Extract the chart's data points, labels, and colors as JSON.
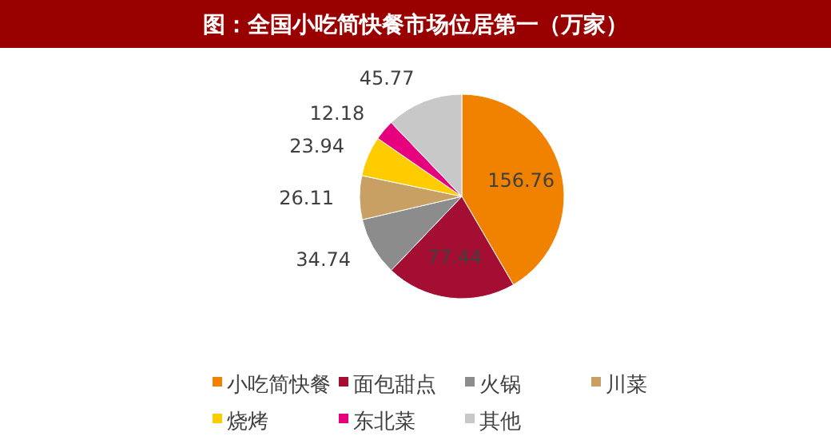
{
  "chart_data": {
    "type": "pie",
    "title": "图：全国小吃简快餐市场位居第一（万家）",
    "categories": [
      "小吃简快餐",
      "面包甜点",
      "火锅",
      "川菜",
      "烧烤",
      "东北菜",
      "其他"
    ],
    "values": [
      156.76,
      77.44,
      34.74,
      26.11,
      23.94,
      12.18,
      45.77
    ],
    "colors": [
      "#f08200",
      "#a50e33",
      "#8c8c8c",
      "#c9a063",
      "#ffcc00",
      "#e6007e",
      "#c8c8c8"
    ],
    "data_labels": true,
    "legend": "bottom"
  }
}
